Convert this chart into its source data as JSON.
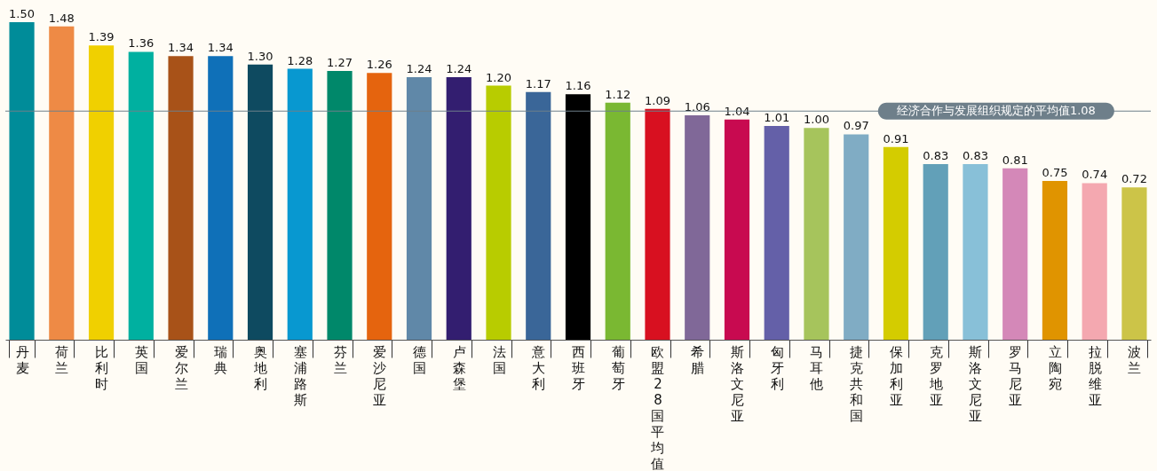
{
  "chart_data": {
    "type": "bar",
    "categories": [
      "丹麦",
      "荷兰",
      "比利时",
      "英国",
      "爱尔兰",
      "瑞典",
      "奥地利",
      "塞浦路斯",
      "芬兰",
      "爱沙尼亚",
      "德国",
      "卢森堡",
      "法国",
      "意大利",
      "西班牙",
      "葡萄牙",
      "欧盟28国平均值",
      "希腊",
      "斯洛文尼亚",
      "匈牙利",
      "马耳他",
      "捷克共和国",
      "保加利亚",
      "克罗地亚",
      "斯洛文尼亚",
      "罗马尼亚",
      "立陶宛",
      "拉脱维亚",
      "波兰"
    ],
    "values": [
      1.5,
      1.48,
      1.39,
      1.36,
      1.34,
      1.34,
      1.3,
      1.28,
      1.27,
      1.26,
      1.24,
      1.24,
      1.2,
      1.17,
      1.16,
      1.12,
      1.09,
      1.06,
      1.04,
      1.01,
      1.0,
      0.97,
      0.91,
      0.83,
      0.83,
      0.81,
      0.75,
      0.74,
      0.72
    ],
    "colors": [
      "#008c99",
      "#ee8a45",
      "#f0d000",
      "#00b0a0",
      "#a85218",
      "#0f70b8",
      "#0e4a60",
      "#0898d0",
      "#00886a",
      "#e5640e",
      "#6088a8",
      "#331e70",
      "#b8cc00",
      "#3a6698",
      "#000000",
      "#7ab832",
      "#d81020",
      "#806898",
      "#c80a50",
      "#6460a8",
      "#a6c45c",
      "#80acc4",
      "#d4cc00",
      "#62a0b8",
      "#88c0d8",
      "#d488b8",
      "#e09400",
      "#f4a8b0",
      "#ccc448"
    ],
    "ylim": [
      0,
      1.5
    ],
    "value_labels": [
      "1.50",
      "1.48",
      "1.39",
      "1.36",
      "1.34",
      "1.34",
      "1.30",
      "1.28",
      "1.27",
      "1.26",
      "1.24",
      "1.24",
      "1.20",
      "1.17",
      "1.16",
      "1.12",
      "1.09",
      "1.06",
      "1.04",
      "1.01",
      "1.00",
      "0.97",
      "0.91",
      "0.83",
      "0.83",
      "0.81",
      "0.75",
      "0.74",
      "0.72"
    ],
    "tick_labels": "x",
    "grid": false,
    "ref_lines": [
      {
        "axis": "y",
        "value": 1.08,
        "label": "经济合作与发展组织规定的平均值1.08",
        "color": "#6e7f8a"
      }
    ]
  }
}
